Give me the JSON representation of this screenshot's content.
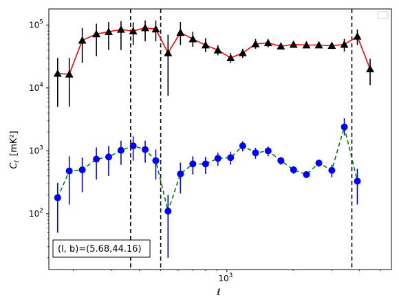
{
  "chart_data": {
    "type": "scatter",
    "title": "",
    "xlabel": "ℓ",
    "ylabel_main": "C",
    "ylabel_sub": "ℓ",
    "ylabel_unit": "[mK²]",
    "xscale": "log",
    "yscale": "log",
    "xlim": [
      155,
      5600
    ],
    "ylim": [
      13,
      180000
    ],
    "grid": false,
    "legend": "top-right (empty)",
    "annotation": "(l, b)=(5.68,44.16)",
    "x_major_ticks": [
      {
        "value": 1000,
        "base": "10",
        "exp": "3"
      }
    ],
    "y_major_ticks": [
      {
        "value": 100,
        "base": "10",
        "exp": "2"
      },
      {
        "value": 1000,
        "base": "10",
        "exp": "3"
      },
      {
        "value": 10000,
        "base": "10",
        "exp": "4"
      },
      {
        "value": 100000,
        "base": "10",
        "exp": "5"
      }
    ],
    "vlines": [
      365,
      500,
      3700
    ],
    "series": [
      {
        "color": "#ff0000",
        "marker_color": "#000000",
        "marker": "triangle",
        "line_style": "solid",
        "points": [
          {
            "x": 170,
            "y": 17000,
            "lo": 5000,
            "hi": 30000
          },
          {
            "x": 192,
            "y": 16500,
            "lo": 5000,
            "hi": 30000
          },
          {
            "x": 220,
            "y": 57000,
            "lo": 25000,
            "hi": 90000
          },
          {
            "x": 255,
            "y": 72000,
            "lo": 32000,
            "hi": 105000
          },
          {
            "x": 290,
            "y": 78000,
            "lo": 40000,
            "hi": 112000
          },
          {
            "x": 330,
            "y": 85000,
            "lo": 40000,
            "hi": 115000
          },
          {
            "x": 375,
            "y": 80000,
            "lo": 48000,
            "hi": 110000
          },
          {
            "x": 425,
            "y": 90000,
            "lo": 55000,
            "hi": 118000
          },
          {
            "x": 475,
            "y": 86000,
            "lo": 55000,
            "hi": 118000
          },
          {
            "x": 540,
            "y": 36000,
            "lo": 7500,
            "hi": 70000
          },
          {
            "x": 615,
            "y": 76000,
            "lo": 48000,
            "hi": 112000
          },
          {
            "x": 700,
            "y": 60000,
            "lo": 45000,
            "hi": 78000
          },
          {
            "x": 800,
            "y": 48000,
            "lo": 37000,
            "hi": 62000
          },
          {
            "x": 910,
            "y": 40000,
            "lo": 33000,
            "hi": 48000
          },
          {
            "x": 1040,
            "y": 30000,
            "lo": 25000,
            "hi": 36000
          },
          {
            "x": 1180,
            "y": 36000,
            "lo": 30000,
            "hi": 42000
          },
          {
            "x": 1350,
            "y": 50000,
            "lo": 42000,
            "hi": 60000
          },
          {
            "x": 1540,
            "y": 52000,
            "lo": 44000,
            "hi": 60000
          },
          {
            "x": 1760,
            "y": 46000,
            "lo": 41000,
            "hi": 52000
          },
          {
            "x": 2010,
            "y": 49000,
            "lo": 44000,
            "hi": 55000
          },
          {
            "x": 2300,
            "y": 48000,
            "lo": 44000,
            "hi": 53000
          },
          {
            "x": 2620,
            "y": 48000,
            "lo": 44000,
            "hi": 52000
          },
          {
            "x": 3000,
            "y": 47000,
            "lo": 43000,
            "hi": 51000
          },
          {
            "x": 3420,
            "y": 49000,
            "lo": 38000,
            "hi": 60000
          },
          {
            "x": 3920,
            "y": 66000,
            "lo": 48000,
            "hi": 85000
          },
          {
            "x": 4480,
            "y": 20000,
            "lo": 11000,
            "hi": 29000
          }
        ]
      },
      {
        "color": "#008000",
        "marker_color": "#0000ff",
        "marker": "circle",
        "line_style": "dashed",
        "points": [
          {
            "x": 170,
            "y": 180,
            "lo": 50,
            "hi": 310
          },
          {
            "x": 192,
            "y": 480,
            "lo": 140,
            "hi": 820
          },
          {
            "x": 220,
            "y": 500,
            "lo": 220,
            "hi": 780
          },
          {
            "x": 255,
            "y": 740,
            "lo": 350,
            "hi": 1130
          },
          {
            "x": 290,
            "y": 800,
            "lo": 400,
            "hi": 1200
          },
          {
            "x": 330,
            "y": 1020,
            "lo": 600,
            "hi": 1450
          },
          {
            "x": 375,
            "y": 1200,
            "lo": 700,
            "hi": 1700
          },
          {
            "x": 425,
            "y": 1050,
            "lo": 650,
            "hi": 1450
          },
          {
            "x": 475,
            "y": 700,
            "lo": 350,
            "hi": 1050
          },
          {
            "x": 540,
            "y": 110,
            "lo": 20,
            "hi": 200
          },
          {
            "x": 615,
            "y": 430,
            "lo": 210,
            "hi": 650
          },
          {
            "x": 700,
            "y": 620,
            "lo": 420,
            "hi": 820
          },
          {
            "x": 800,
            "y": 620,
            "lo": 430,
            "hi": 800
          },
          {
            "x": 910,
            "y": 760,
            "lo": 580,
            "hi": 940
          },
          {
            "x": 1040,
            "y": 780,
            "lo": 600,
            "hi": 970
          },
          {
            "x": 1180,
            "y": 1200,
            "lo": 980,
            "hi": 1420
          },
          {
            "x": 1350,
            "y": 930,
            "lo": 750,
            "hi": 1120
          },
          {
            "x": 1540,
            "y": 1000,
            "lo": 820,
            "hi": 1180
          },
          {
            "x": 1760,
            "y": 700,
            "lo": 600,
            "hi": 800
          },
          {
            "x": 2010,
            "y": 500,
            "lo": 430,
            "hi": 570
          },
          {
            "x": 2300,
            "y": 420,
            "lo": 370,
            "hi": 470
          },
          {
            "x": 2620,
            "y": 640,
            "lo": 560,
            "hi": 720
          },
          {
            "x": 3000,
            "y": 490,
            "lo": 380,
            "hi": 600
          },
          {
            "x": 3420,
            "y": 2400,
            "lo": 1750,
            "hi": 3300
          },
          {
            "x": 3920,
            "y": 330,
            "lo": 140,
            "hi": 520
          }
        ]
      }
    ]
  }
}
